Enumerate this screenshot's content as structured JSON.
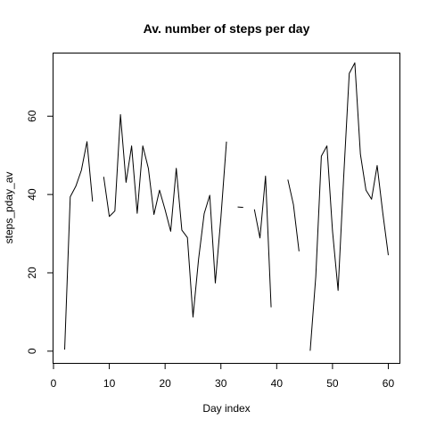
{
  "chart_data": {
    "type": "line",
    "title": "Av. number of steps per day",
    "xlabel": "Day index",
    "ylabel": "steps_pday_av",
    "xlim": [
      0,
      62
    ],
    "ylim": [
      -3,
      76
    ],
    "xticks": [
      0,
      10,
      20,
      30,
      40,
      50,
      60
    ],
    "yticks": [
      0,
      20,
      40,
      60
    ],
    "grid": false,
    "series": [
      {
        "color": "#000000",
        "x": [
          1,
          2,
          3,
          4,
          5,
          6,
          7,
          8,
          9,
          10,
          11,
          12,
          13,
          14,
          15,
          16,
          17,
          18,
          19,
          20,
          21,
          22,
          23,
          24,
          25,
          26,
          27,
          28,
          29,
          30,
          31,
          32,
          33,
          34,
          35,
          36,
          37,
          38,
          39,
          40,
          41,
          42,
          43,
          44,
          45,
          46,
          47,
          48,
          49,
          50,
          51,
          52,
          53,
          54,
          55,
          56,
          57,
          58,
          59,
          60,
          61
        ],
        "y": [
          null,
          0.4,
          39.4,
          42.1,
          46.2,
          53.5,
          38.2,
          null,
          44.5,
          34.4,
          35.8,
          60.4,
          43.1,
          52.4,
          35.2,
          52.4,
          46.7,
          34.9,
          41.1,
          36.1,
          30.6,
          46.7,
          30.9,
          29.0,
          8.7,
          23.5,
          35.1,
          39.8,
          17.4,
          34.1,
          53.5,
          null,
          36.8,
          36.7,
          null,
          36.2,
          28.9,
          44.7,
          11.2,
          null,
          null,
          43.8,
          37.4,
          25.5,
          null,
          0.1,
          19.0,
          49.8,
          52.4,
          30.7,
          15.5,
          44.4,
          70.9,
          73.6,
          50.3,
          41.1,
          38.8,
          47.4,
          35.4,
          24.5,
          null
        ]
      }
    ]
  }
}
